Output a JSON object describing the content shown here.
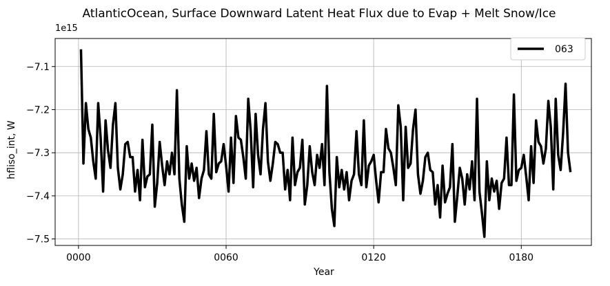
{
  "chart_data": {
    "type": "line",
    "title": "AtlanticOcean, Surface Downward Latent Heat Flux due to Evap + Melt Snow/Ice",
    "xlabel": "Year",
    "ylabel": "hfliso_int, W",
    "offset_text": "1e15",
    "x_tick_labels": [
      "0000",
      "0060",
      "0120",
      "0180"
    ],
    "x_tick_values": [
      0,
      60,
      120,
      180
    ],
    "y_tick_labels": [
      "−7.1",
      "−7.2",
      "−7.3",
      "−7.4",
      "−7.5"
    ],
    "y_tick_values": [
      -7.1,
      -7.2,
      -7.3,
      -7.4,
      -7.5
    ],
    "xlim": [
      -9.5,
      208.5
    ],
    "ylim": [
      -7.515,
      -7.035
    ],
    "grid": true,
    "legend_position": "top-right",
    "series": [
      {
        "name": "063",
        "color": "#000000",
        "x": [
          1,
          2,
          3,
          4,
          5,
          6,
          7,
          8,
          9,
          10,
          11,
          12,
          13,
          14,
          15,
          16,
          17,
          18,
          19,
          20,
          21,
          22,
          23,
          24,
          25,
          26,
          27,
          28,
          29,
          30,
          31,
          32,
          33,
          34,
          35,
          36,
          37,
          38,
          39,
          40,
          41,
          42,
          43,
          44,
          45,
          46,
          47,
          48,
          49,
          50,
          51,
          52,
          53,
          54,
          55,
          56,
          57,
          58,
          59,
          60,
          61,
          62,
          63,
          64,
          65,
          66,
          67,
          68,
          69,
          70,
          71,
          72,
          73,
          74,
          75,
          76,
          77,
          78,
          79,
          80,
          81,
          82,
          83,
          84,
          85,
          86,
          87,
          88,
          89,
          90,
          91,
          92,
          93,
          94,
          95,
          96,
          97,
          98,
          99,
          100,
          101,
          102,
          103,
          104,
          105,
          106,
          107,
          108,
          109,
          110,
          111,
          112,
          113,
          114,
          115,
          116,
          117,
          118,
          119,
          120,
          121,
          122,
          123,
          124,
          125,
          126,
          127,
          128,
          129,
          130,
          131,
          132,
          133,
          134,
          135,
          136,
          137,
          138,
          139,
          140,
          141,
          142,
          143,
          144,
          145,
          146,
          147,
          148,
          149,
          150,
          151,
          152,
          153,
          154,
          155,
          156,
          157,
          158,
          159,
          160,
          161,
          162,
          163,
          164,
          165,
          166,
          167,
          168,
          169,
          170,
          171,
          172,
          173,
          174,
          175,
          176,
          177,
          178,
          179,
          180,
          181,
          182,
          183,
          184,
          185,
          186,
          187,
          188,
          189,
          190,
          191,
          192,
          193,
          194,
          195,
          196,
          197,
          198,
          199,
          200
        ],
        "values": [
          -7.06,
          -7.325,
          -7.185,
          -7.245,
          -7.265,
          -7.32,
          -7.36,
          -7.185,
          -7.265,
          -7.39,
          -7.225,
          -7.295,
          -7.335,
          -7.235,
          -7.185,
          -7.335,
          -7.385,
          -7.35,
          -7.28,
          -7.275,
          -7.31,
          -7.31,
          -7.39,
          -7.34,
          -7.41,
          -7.27,
          -7.38,
          -7.355,
          -7.35,
          -7.235,
          -7.425,
          -7.37,
          -7.275,
          -7.33,
          -7.375,
          -7.32,
          -7.35,
          -7.3,
          -7.35,
          -7.155,
          -7.36,
          -7.42,
          -7.46,
          -7.285,
          -7.36,
          -7.325,
          -7.365,
          -7.335,
          -7.405,
          -7.36,
          -7.34,
          -7.25,
          -7.35,
          -7.36,
          -7.21,
          -7.345,
          -7.325,
          -7.32,
          -7.28,
          -7.33,
          -7.39,
          -7.265,
          -7.37,
          -7.215,
          -7.265,
          -7.27,
          -7.31,
          -7.36,
          -7.175,
          -7.25,
          -7.38,
          -7.21,
          -7.305,
          -7.35,
          -7.245,
          -7.185,
          -7.32,
          -7.365,
          -7.325,
          -7.275,
          -7.28,
          -7.3,
          -7.3,
          -7.385,
          -7.34,
          -7.41,
          -7.265,
          -7.375,
          -7.345,
          -7.335,
          -7.27,
          -7.42,
          -7.375,
          -7.285,
          -7.345,
          -7.375,
          -7.305,
          -7.335,
          -7.28,
          -7.375,
          -7.145,
          -7.345,
          -7.43,
          -7.47,
          -7.31,
          -7.38,
          -7.34,
          -7.385,
          -7.345,
          -7.41,
          -7.365,
          -7.35,
          -7.25,
          -7.35,
          -7.375,
          -7.225,
          -7.38,
          -7.33,
          -7.32,
          -7.305,
          -7.365,
          -7.415,
          -7.345,
          -7.345,
          -7.245,
          -7.29,
          -7.3,
          -7.335,
          -7.375,
          -7.19,
          -7.24,
          -7.41,
          -7.24,
          -7.335,
          -7.325,
          -7.245,
          -7.2,
          -7.35,
          -7.395,
          -7.365,
          -7.31,
          -7.3,
          -7.34,
          -7.345,
          -7.42,
          -7.375,
          -7.45,
          -7.33,
          -7.415,
          -7.395,
          -7.38,
          -7.28,
          -7.46,
          -7.4,
          -7.335,
          -7.36,
          -7.42,
          -7.35,
          -7.385,
          -7.32,
          -7.41,
          -7.175,
          -7.39,
          -7.44,
          -7.495,
          -7.32,
          -7.41,
          -7.36,
          -7.39,
          -7.365,
          -7.43,
          -7.37,
          -7.36,
          -7.265,
          -7.375,
          -7.375,
          -7.165,
          -7.365,
          -7.34,
          -7.335,
          -7.305,
          -7.355,
          -7.41,
          -7.285,
          -7.37,
          -7.225,
          -7.275,
          -7.285,
          -7.325,
          -7.29,
          -7.18,
          -7.24,
          -7.385,
          -7.175,
          -7.305,
          -7.34,
          -7.255,
          -7.14,
          -7.3,
          -7.345
        ]
      }
    ]
  }
}
